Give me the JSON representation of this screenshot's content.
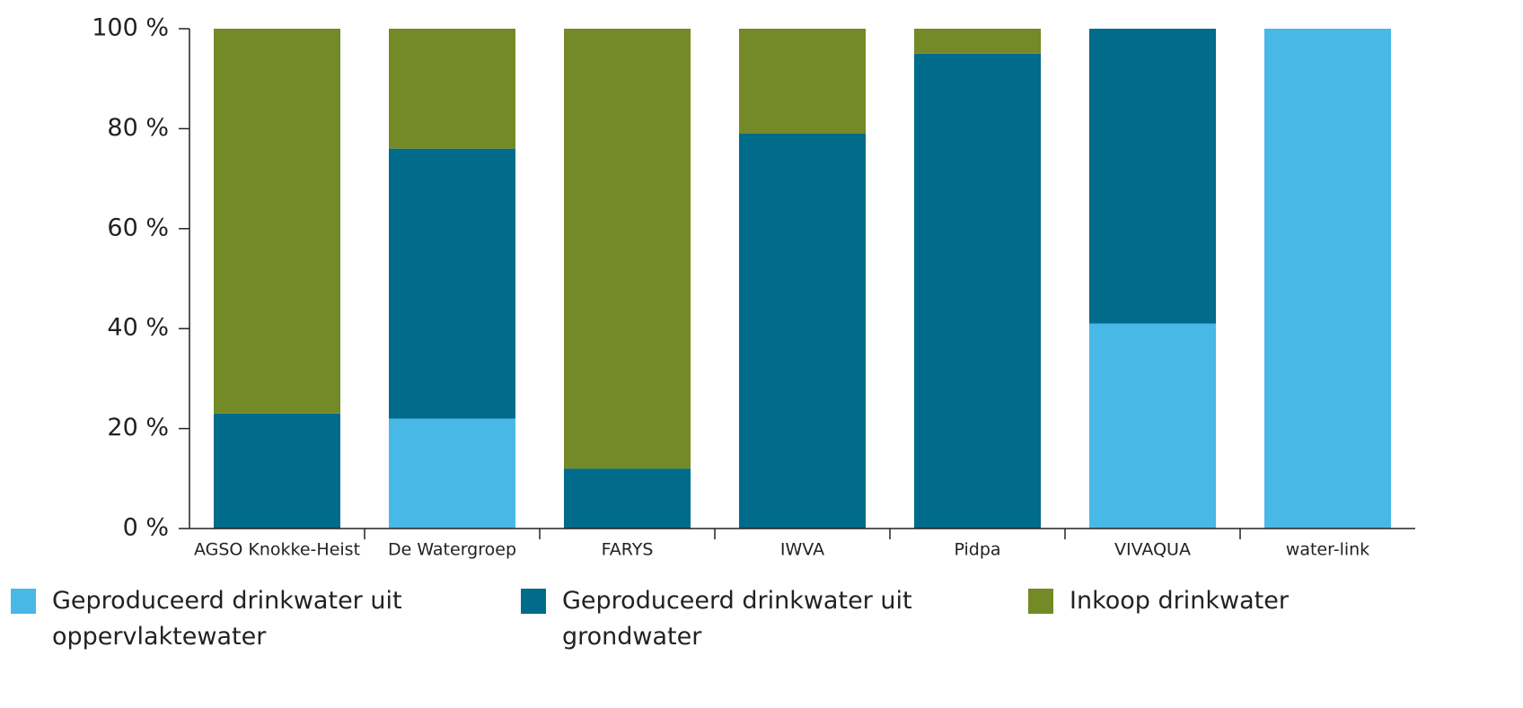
{
  "chart_data": {
    "type": "stacked_bar",
    "categories": [
      "AGSO Knokke-Heist",
      "De Watergroep",
      "FARYS",
      "IWVA",
      "Pidpa",
      "VIVAQUA",
      "water-link"
    ],
    "series": [
      {
        "name": "Geproduceerd drinkwater uit oppervlaktewater",
        "color": "#48b8e6",
        "values": [
          0,
          22,
          0,
          0,
          0,
          41,
          100
        ]
      },
      {
        "name": "Geproduceerd drinkwater uit grondwater",
        "color": "#006b8a",
        "values": [
          23,
          54,
          12,
          79,
          95,
          59,
          0
        ]
      },
      {
        "name": "Inkoop drinkwater",
        "color": "#738a27",
        "values": [
          77,
          24,
          88,
          21,
          5,
          0,
          0
        ]
      }
    ],
    "ylim": [
      0,
      100
    ],
    "yticks": [
      {
        "value": 0,
        "label": "0 %"
      },
      {
        "value": 20,
        "label": "20 %"
      },
      {
        "value": 40,
        "label": "40 %"
      },
      {
        "value": 60,
        "label": "60 %"
      },
      {
        "value": 80,
        "label": "80 %"
      },
      {
        "value": 100,
        "label": "100 %"
      }
    ]
  }
}
